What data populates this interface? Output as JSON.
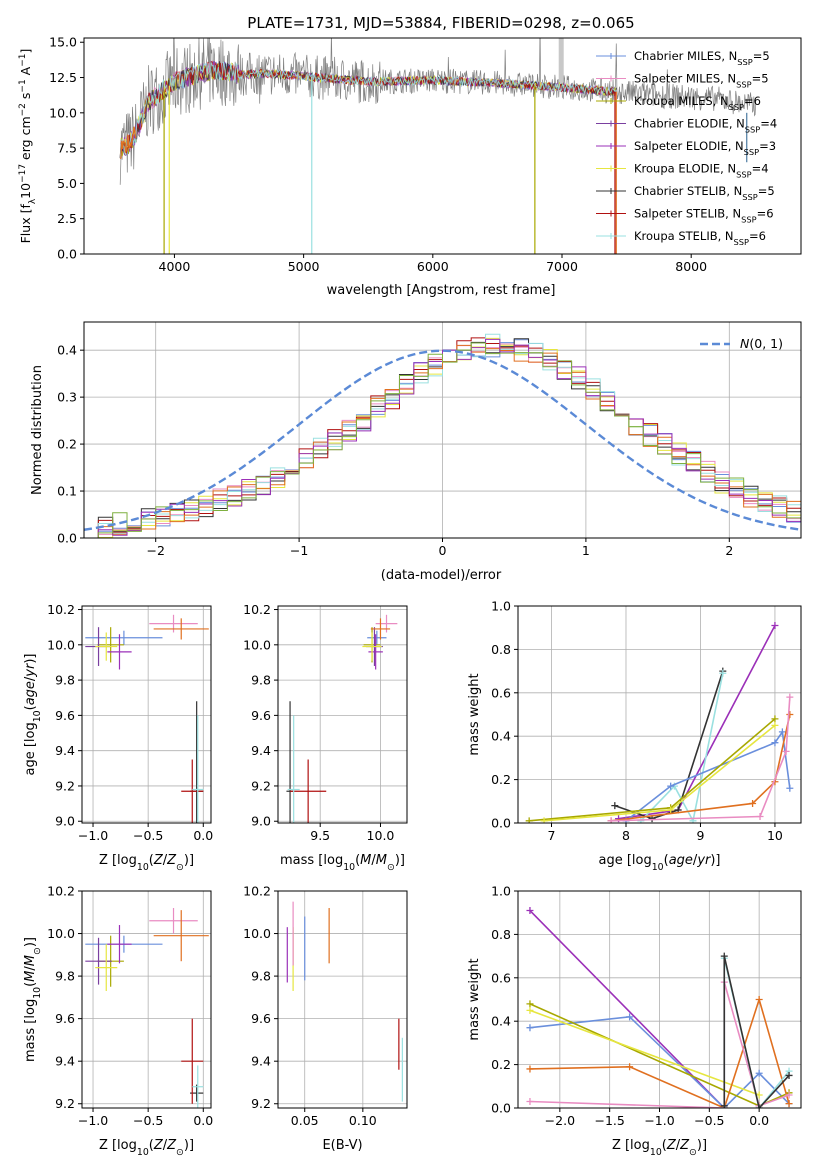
{
  "figure": {
    "title": "PLATE=1731, MJD=53884, FIBERID=0298, z=0.065"
  },
  "palette": {
    "Chabrier MILES": "#6a8fdc",
    "Salpeter MILES": "#e98cc2",
    "Kroupa MILES": "#a8a800",
    "Chabrier ELODIE": "#7a3fa0",
    "Salpeter ELODIE": "#9b30b8",
    "Kroupa ELODIE": "#e6e640",
    "Chabrier STELIB": "#333333",
    "Salpeter STELIB": "#b01010",
    "Kroupa STELIB": "#9ae0e0",
    "orange": "#e07020",
    "green": "#7fb040",
    "data": "#808080",
    "gauss": "#5b8ad6"
  },
  "chart_data": [
    {
      "id": "spectrum",
      "type": "line",
      "title": "PLATE=1731, MJD=53884, FIBERID=0298, z=0.065",
      "xlabel": "wavelength [Angstrom, rest frame]",
      "ylabel": "Flux [f_λ10^-17 erg cm^-2 s^-1 A^-1]",
      "xlim": [
        3300,
        8850
      ],
      "ylim": [
        0,
        15.3
      ],
      "xticks": [
        4000,
        5000,
        6000,
        7000,
        8000
      ],
      "yticks": [
        0.0,
        2.5,
        5.0,
        7.5,
        10.0,
        12.5,
        15.0
      ],
      "legend": [
        "Chabrier MILES, N_SSP=5",
        "Salpeter MILES, N_SSP=5",
        "Kroupa MILES, N_SSP=6",
        "Chabrier ELODIE, N_SSP=4",
        "Salpeter ELODIE, N_SSP=3",
        "Kroupa ELODIE, N_SSP=4",
        "Chabrier STELIB, N_SSP=5",
        "Salpeter STELIB, N_SSP=6",
        "Kroupa STELIB, N_SSP=6"
      ],
      "continuum": {
        "x": [
          3580,
          3650,
          3700,
          3800,
          3900,
          4000,
          4100,
          4200,
          4300,
          4400,
          4500,
          4700,
          5000,
          5500,
          6000,
          6500,
          7000,
          7400,
          7800,
          8200,
          8500
        ],
        "y": [
          7.5,
          7.8,
          8.5,
          10.8,
          11.5,
          12.2,
          12.5,
          12.8,
          13.0,
          13.0,
          12.7,
          12.8,
          12.6,
          12.2,
          12.3,
          12.1,
          11.8,
          11.5,
          11.2,
          11.0,
          10.5
        ]
      },
      "model_wavelength_range": [
        3580,
        7420
      ],
      "grey_bar_x": 6990
    },
    {
      "id": "residuals",
      "type": "bar",
      "xlabel": "(data-model)/error",
      "ylabel": "Normed distribution",
      "xlim": [
        -2.5,
        2.5
      ],
      "ylim": [
        0,
        0.46
      ],
      "xticks": [
        -2,
        -1,
        0,
        1,
        2
      ],
      "yticks": [
        0.0,
        0.1,
        0.2,
        0.3,
        0.4
      ],
      "legend": [
        "N(0,1)"
      ],
      "bin_width": 0.1,
      "hist_envelope": [
        0.02,
        0.025,
        0.03,
        0.035,
        0.04,
        0.045,
        0.05,
        0.06,
        0.07,
        0.08,
        0.09,
        0.1,
        0.11,
        0.13,
        0.15,
        0.17,
        0.19,
        0.21,
        0.23,
        0.25,
        0.28,
        0.3,
        0.33,
        0.35,
        0.37,
        0.39,
        0.4,
        0.41,
        0.41,
        0.4,
        0.4,
        0.39,
        0.38,
        0.36,
        0.34,
        0.32,
        0.29,
        0.27,
        0.24,
        0.22,
        0.2,
        0.18,
        0.16,
        0.14,
        0.12,
        0.11,
        0.09,
        0.08,
        0.065,
        0.055,
        0.05,
        0.04,
        0.035,
        0.03
      ]
    },
    {
      "id": "age_vs_Z",
      "type": "scatter",
      "xlabel": "Z [log10(Z/Z⊙)]",
      "ylabel": "age  [log10(age/yr)]",
      "xlim": [
        -1.1,
        0.07
      ],
      "ylim": [
        8.99,
        10.22
      ],
      "xticks": [
        -1.0,
        -0.5,
        0.0
      ],
      "yticks": [
        9.0,
        9.2,
        9.4,
        9.6,
        9.8,
        10.0,
        10.2
      ],
      "points": [
        {
          "series": "Chabrier MILES",
          "x": -0.72,
          "y": 10.04,
          "ex": 0.35,
          "ey": 0.04
        },
        {
          "series": "Salpeter MILES",
          "x": -0.27,
          "y": 10.12,
          "ex": 0.22,
          "ey": 0.05
        },
        {
          "series": "Kroupa MILES",
          "x": -0.84,
          "y": 10.0,
          "ex": 0.12,
          "ey": 0.1
        },
        {
          "series": "Chabrier ELODIE",
          "x": -0.95,
          "y": 9.99,
          "ex": 0.12,
          "ey": 0.11
        },
        {
          "series": "Salpeter ELODIE",
          "x": -0.76,
          "y": 9.96,
          "ex": 0.11,
          "ey": 0.1
        },
        {
          "series": "Kroupa ELODIE",
          "x": -0.88,
          "y": 9.99,
          "ex": 0.1,
          "ey": 0.08
        },
        {
          "series": "Chabrier STELIB",
          "x": -0.06,
          "y": 9.17,
          "ex": 0.06,
          "ey": 0.51
        },
        {
          "series": "Salpeter STELIB",
          "x": -0.1,
          "y": 9.17,
          "ex": 0.1,
          "ey": 0.18
        },
        {
          "series": "Kroupa STELIB",
          "x": -0.05,
          "y": 9.18,
          "ex": 0.05,
          "ey": 0.42
        },
        {
          "series": "orange",
          "x": -0.2,
          "y": 10.09,
          "ex": 0.25,
          "ey": 0.06
        }
      ]
    },
    {
      "id": "age_vs_mass",
      "type": "scatter",
      "xlabel": "mass [log10(M/M⊙)]",
      "ylabel": "",
      "xlim": [
        9.15,
        10.22
      ],
      "ylim": [
        8.99,
        10.22
      ],
      "xticks": [
        9.5,
        10.0
      ],
      "yticks": [
        9.0,
        9.2,
        9.4,
        9.6,
        9.8,
        10.0,
        10.2
      ],
      "points": [
        {
          "series": "Chabrier MILES",
          "x": 9.97,
          "y": 10.04,
          "ex": 0.08,
          "ey": 0.04
        },
        {
          "series": "Salpeter MILES",
          "x": 10.05,
          "y": 10.12,
          "ex": 0.09,
          "ey": 0.05
        },
        {
          "series": "Kroupa MILES",
          "x": 9.93,
          "y": 10.0,
          "ex": 0.07,
          "ey": 0.1
        },
        {
          "series": "Chabrier ELODIE",
          "x": 9.95,
          "y": 9.99,
          "ex": 0.07,
          "ey": 0.11
        },
        {
          "series": "Salpeter ELODIE",
          "x": 9.96,
          "y": 9.96,
          "ex": 0.06,
          "ey": 0.1
        },
        {
          "series": "Kroupa ELODIE",
          "x": 9.93,
          "y": 9.99,
          "ex": 0.08,
          "ey": 0.08
        },
        {
          "series": "Chabrier STELIB",
          "x": 9.25,
          "y": 9.17,
          "ex": 0.03,
          "ey": 0.51
        },
        {
          "series": "Salpeter STELIB",
          "x": 9.4,
          "y": 9.17,
          "ex": 0.15,
          "ey": 0.18
        },
        {
          "series": "Kroupa STELIB",
          "x": 9.28,
          "y": 9.18,
          "ex": 0.05,
          "ey": 0.42
        },
        {
          "series": "orange",
          "x": 10.0,
          "y": 10.09,
          "ex": 0.08,
          "ey": 0.06
        }
      ]
    },
    {
      "id": "massweight_vs_age",
      "type": "line",
      "xlabel": "age  [log10(age/yr)]",
      "ylabel": "mass weight",
      "xlim": [
        6.55,
        10.35
      ],
      "ylim": [
        0,
        1.0
      ],
      "xticks": [
        7,
        8,
        9,
        10
      ],
      "yticks": [
        0.0,
        0.2,
        0.4,
        0.6,
        0.8,
        1.0
      ],
      "series": [
        {
          "name": "Salpeter ELODIE",
          "x": [
            7.9,
            8.7,
            10.0
          ],
          "y": [
            0.02,
            0.06,
            0.91
          ]
        },
        {
          "name": "Chabrier STELIB",
          "x": [
            7.85,
            8.35,
            8.7,
            9.3
          ],
          "y": [
            0.08,
            0.02,
            0.06,
            0.7
          ]
        },
        {
          "name": "Kroupa STELIB",
          "x": [
            8.2,
            8.65,
            8.9,
            9.3
          ],
          "y": [
            0.01,
            0.17,
            0.01,
            0.69
          ]
        },
        {
          "name": "Chabrier MILES",
          "x": [
            8.0,
            8.6,
            10.0,
            10.1,
            10.2
          ],
          "y": [
            0.01,
            0.17,
            0.37,
            0.42,
            0.16
          ]
        },
        {
          "name": "Kroupa MILES",
          "x": [
            6.7,
            8.6,
            10.0
          ],
          "y": [
            0.01,
            0.07,
            0.48
          ]
        },
        {
          "name": "Kroupa ELODIE",
          "x": [
            6.9,
            8.6,
            10.0
          ],
          "y": [
            0.01,
            0.06,
            0.45
          ]
        },
        {
          "name": "orange",
          "x": [
            7.8,
            9.7,
            10.0,
            10.2
          ],
          "y": [
            0.01,
            0.09,
            0.19,
            0.5
          ]
        },
        {
          "name": "Salpeter MILES",
          "x": [
            7.8,
            9.8,
            10.15,
            10.2
          ],
          "y": [
            0.01,
            0.03,
            0.33,
            0.58
          ]
        }
      ]
    },
    {
      "id": "mass_vs_Z",
      "type": "scatter",
      "xlabel": "Z [log10(Z/Z⊙)]",
      "ylabel": "mass [log10(M/M⊙)]",
      "xlim": [
        -1.1,
        0.07
      ],
      "ylim": [
        9.18,
        10.2
      ],
      "xticks": [
        -1.0,
        -0.5,
        0.0
      ],
      "yticks": [
        9.2,
        9.4,
        9.6,
        9.8,
        10.0,
        10.2
      ],
      "points": [
        {
          "series": "Chabrier MILES",
          "x": -0.72,
          "y": 9.95,
          "ex": 0.35,
          "ey": 0.04
        },
        {
          "series": "Salpeter MILES",
          "x": -0.27,
          "y": 10.06,
          "ex": 0.22,
          "ey": 0.06
        },
        {
          "series": "Kroupa MILES",
          "x": -0.84,
          "y": 9.87,
          "ex": 0.12,
          "ey": 0.12
        },
        {
          "series": "Chabrier ELODIE",
          "x": -0.95,
          "y": 9.87,
          "ex": 0.12,
          "ey": 0.11
        },
        {
          "series": "Salpeter ELODIE",
          "x": -0.76,
          "y": 9.95,
          "ex": 0.11,
          "ey": 0.09
        },
        {
          "series": "Kroupa ELODIE",
          "x": -0.88,
          "y": 9.84,
          "ex": 0.1,
          "ey": 0.11
        },
        {
          "series": "Chabrier STELIB",
          "x": -0.06,
          "y": 9.25,
          "ex": 0.06,
          "ey": 0.04
        },
        {
          "series": "Salpeter STELIB",
          "x": -0.1,
          "y": 9.4,
          "ex": 0.1,
          "ey": 0.2
        },
        {
          "series": "Kroupa STELIB",
          "x": -0.05,
          "y": 9.28,
          "ex": 0.05,
          "ey": 0.1
        },
        {
          "series": "orange",
          "x": -0.2,
          "y": 9.99,
          "ex": 0.25,
          "ey": 0.12
        }
      ]
    },
    {
      "id": "mass_vs_EBV",
      "type": "scatter",
      "xlabel": "E(B-V)",
      "ylabel": "",
      "xlim": [
        0.027,
        0.138
      ],
      "ylim": [
        9.18,
        10.2
      ],
      "xticks": [
        0.05,
        0.1
      ],
      "yticks": [
        9.2,
        9.4,
        9.6,
        9.8,
        10.0,
        10.2
      ],
      "points": [
        {
          "series": "Salpeter ELODIE",
          "x": 0.035,
          "y": 9.9,
          "ey": 0.13
        },
        {
          "series": "Kroupa ELODIE",
          "x": 0.04,
          "y": 9.88,
          "ey": 0.15
        },
        {
          "series": "Salpeter MILES",
          "x": 0.04,
          "y": 10.0,
          "ey": 0.15
        },
        {
          "series": "Chabrier MILES",
          "x": 0.05,
          "y": 9.93,
          "ey": 0.15
        },
        {
          "series": "orange",
          "x": 0.071,
          "y": 9.99,
          "ey": 0.13
        },
        {
          "series": "Salpeter STELIB",
          "x": 0.131,
          "y": 9.48,
          "ey": 0.12
        },
        {
          "series": "Kroupa STELIB",
          "x": 0.134,
          "y": 9.36,
          "ey": 0.15
        }
      ]
    },
    {
      "id": "massweight_vs_Z",
      "type": "line",
      "xlabel": "Z [log10(Z/Z⊙)]",
      "ylabel": "mass weight",
      "xlim": [
        -2.42,
        0.42
      ],
      "ylim": [
        0,
        1.0
      ],
      "xticks": [
        -2.0,
        -1.5,
        -1.0,
        -0.5,
        0.0
      ],
      "yticks": [
        0.0,
        0.2,
        0.4,
        0.6,
        0.8,
        1.0
      ],
      "series": [
        {
          "name": "Salpeter ELODIE",
          "x": [
            -2.3,
            -0.35
          ],
          "y": [
            0.91,
            0.0
          ]
        },
        {
          "name": "Chabrier MILES",
          "x": [
            -2.3,
            -1.3,
            -0.35,
            0.0,
            0.3
          ],
          "y": [
            0.37,
            0.42,
            0.0,
            0.16,
            0.02
          ]
        },
        {
          "name": "Kroupa MILES",
          "x": [
            -2.3,
            0.0,
            0.3
          ],
          "y": [
            0.48,
            0.01,
            0.07
          ]
        },
        {
          "name": "Kroupa ELODIE",
          "x": [
            -2.3,
            0.0
          ],
          "y": [
            0.45,
            0.06
          ]
        },
        {
          "name": "orange",
          "x": [
            -2.3,
            -1.3,
            -0.35,
            0.0,
            0.3
          ],
          "y": [
            0.18,
            0.19,
            0.0,
            0.5,
            0.02
          ]
        },
        {
          "name": "Salpeter MILES",
          "x": [
            -2.3,
            -0.35,
            -0.35,
            0.0,
            0.3
          ],
          "y": [
            0.03,
            0.0,
            0.58,
            0.01,
            0.06
          ]
        },
        {
          "name": "Kroupa STELIB",
          "x": [
            -0.35,
            -0.35,
            0.0,
            0.3
          ],
          "y": [
            0.0,
            0.69,
            0.0,
            0.17
          ]
        },
        {
          "name": "Chabrier STELIB",
          "x": [
            -0.35,
            -0.35,
            0.0,
            0.3
          ],
          "y": [
            0.01,
            0.7,
            0.0,
            0.15
          ]
        }
      ]
    }
  ]
}
